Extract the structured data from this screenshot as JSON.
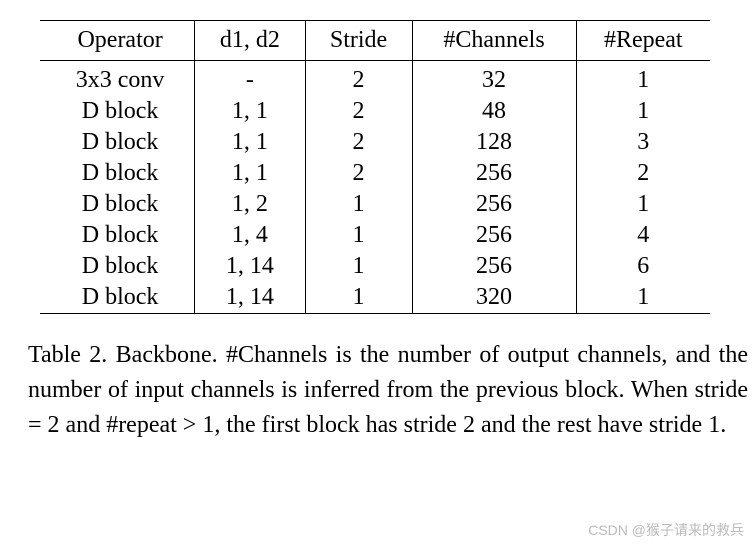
{
  "table": {
    "columns": [
      "Operator",
      "d1, d2",
      "Stride",
      "#Channels",
      "#Repeat"
    ],
    "rows": [
      [
        "3x3 conv",
        "-",
        "2",
        "32",
        "1"
      ],
      [
        "D block",
        "1, 1",
        "2",
        "48",
        "1"
      ],
      [
        "D block",
        "1, 1",
        "2",
        "128",
        "3"
      ],
      [
        "D block",
        "1, 1",
        "2",
        "256",
        "2"
      ],
      [
        "D block",
        "1, 2",
        "1",
        "256",
        "1"
      ],
      [
        "D block",
        "1, 4",
        "1",
        "256",
        "4"
      ],
      [
        "D block",
        "1, 14",
        "1",
        "256",
        "6"
      ],
      [
        "D block",
        "1, 14",
        "1",
        "320",
        "1"
      ]
    ],
    "border_color": "#000000",
    "background_color": "#ffffff",
    "header_fontsize": 24,
    "body_fontsize": 24,
    "font_family": "Times New Roman"
  },
  "caption": {
    "label": "Table 2.",
    "text": "Backbone. #Channels is the number of output channels, and the number of input channels is inferred from the previous block. When stride = 2 and #repeat > 1, the first block has stride 2 and the rest have stride 1.",
    "fontsize": 24
  },
  "watermark": {
    "text": "CSDN @猴子请来的救兵",
    "color": "#b4b4b4"
  }
}
